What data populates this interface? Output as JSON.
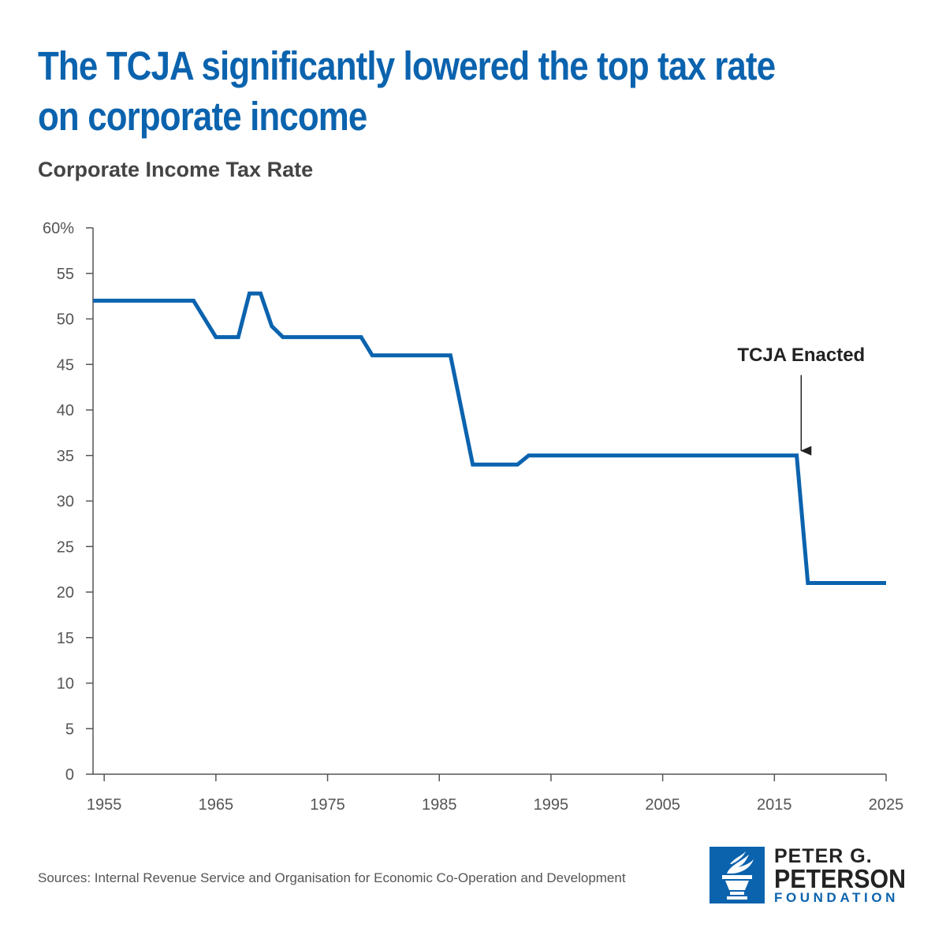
{
  "header": {
    "title": "The TCJA significantly lowered the top tax rate on corporate income",
    "subtitle": "Corporate Income Tax Rate"
  },
  "chart_data": {
    "type": "line",
    "title": "Corporate Income Tax Rate",
    "xlabel": "",
    "ylabel": "",
    "xlim": [
      1954,
      2025
    ],
    "ylim": [
      0,
      60
    ],
    "grid": false,
    "legend": "none",
    "x_ticks": [
      1955,
      1965,
      1975,
      1985,
      1995,
      2005,
      2015,
      2025
    ],
    "y_ticks": [
      0,
      5,
      10,
      15,
      20,
      25,
      30,
      35,
      40,
      45,
      50,
      55,
      60
    ],
    "y_tick_labels": [
      "0",
      "5",
      "10",
      "15",
      "20",
      "25",
      "30",
      "35",
      "40",
      "45",
      "50",
      "55",
      "60%"
    ],
    "series": [
      {
        "color": "#0b63ae",
        "points": [
          [
            1954,
            52
          ],
          [
            1963,
            52
          ],
          [
            1965,
            48
          ],
          [
            1967,
            48
          ],
          [
            1968,
            52.8
          ],
          [
            1969,
            52.8
          ],
          [
            1970,
            49.2
          ],
          [
            1971,
            48
          ],
          [
            1978,
            48
          ],
          [
            1979,
            46
          ],
          [
            1986,
            46
          ],
          [
            1988,
            34
          ],
          [
            1992,
            34
          ],
          [
            1993,
            35
          ],
          [
            2017,
            35
          ],
          [
            2018,
            21
          ],
          [
            2025,
            21
          ]
        ]
      }
    ],
    "annotations": [
      {
        "text": "TCJA Enacted",
        "x": 2017.4,
        "y": 35
      }
    ]
  },
  "footer": {
    "source": "Sources: Internal Revenue Service and Organisation for Economic Co-Operation and Development",
    "logo": {
      "line1": "PETER G.",
      "line2": "PETERSON",
      "line3": "FOUNDATION",
      "icon": "torch-icon"
    }
  },
  "colors": {
    "accent": "#0b63ae",
    "text_dark": "#222222",
    "text_gray": "#444444",
    "axis": "#555555"
  }
}
